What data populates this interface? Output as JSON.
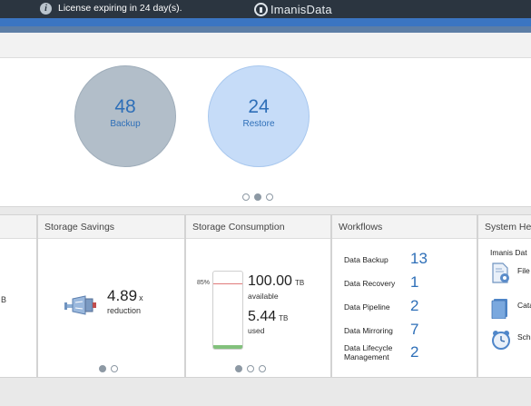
{
  "banner": {
    "license_text": "License expiring in 24 day(s).",
    "logo_text": "ImanisData",
    "icon": "info-icon"
  },
  "jobs": {
    "backup": {
      "count": "48",
      "label": "Backup",
      "color": "#b2bec9"
    },
    "restore": {
      "count": "24",
      "label": "Restore",
      "color": "#c6dcf8"
    },
    "carousel_active": 1
  },
  "cards": {
    "partial_left": {
      "fragment": "B"
    },
    "storage_savings": {
      "title": "Storage Savings",
      "value": "4.89",
      "value_suffix": "x",
      "caption": "reduction",
      "icon": "compress-icon",
      "carousel_active": 0
    },
    "storage_consumption": {
      "title": "Storage Consumption",
      "gauge_threshold_label": "85%",
      "gauge_threshold": 0.85,
      "used_fraction": 0.052,
      "available_value": "100.00",
      "available_unit": "TB",
      "available_label": "available",
      "used_value": "5.44",
      "used_unit": "TB",
      "used_label": "used",
      "carousel_active": 0
    },
    "workflows": {
      "title": "Workflows",
      "items": [
        {
          "label": "Data Backup",
          "count": "13"
        },
        {
          "label": "Data Recovery",
          "count": "1"
        },
        {
          "label": "Data Pipeline",
          "count": "2"
        },
        {
          "label": "Data Mirroring",
          "count": "7"
        },
        {
          "label": "Data Lifecycle\nManagement",
          "count": "2"
        }
      ]
    },
    "system_health": {
      "title": "System Hea",
      "subtitle": "Imanis Dat",
      "items": [
        {
          "label": "File",
          "icon": "file-settings-icon"
        },
        {
          "label": "Cata",
          "icon": "catalog-icon"
        },
        {
          "label": "Sche",
          "icon": "scheduler-clock-icon"
        }
      ]
    }
  }
}
